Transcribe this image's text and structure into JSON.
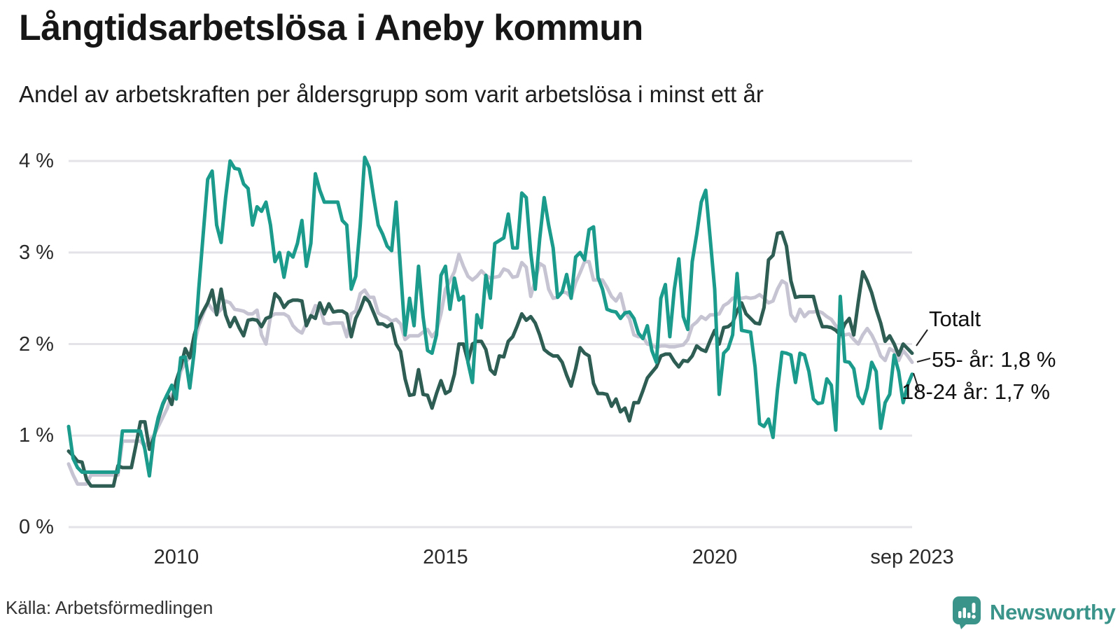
{
  "title": "Långtidsarbetslösa i Aneby kommun",
  "subtitle": "Andel av arbetskraften per åldersgrupp som varit arbetslösa i minst ett år",
  "source": "Källa: Arbetsförmedlingen",
  "branding": {
    "name": "Newsworthy",
    "color": "#3A948A"
  },
  "annotations": {
    "totalt": "Totalt",
    "age55": "55- år: 1,8 %",
    "age1824": "18-24 år: 1,7 %"
  },
  "chart_data": {
    "type": "line",
    "title": "Långtidsarbetslösa i Aneby kommun",
    "subtitle": "Andel av arbetskraften per åldersgrupp som varit arbetslösa i minst ett år",
    "unit": "percent",
    "frequency": "monthly",
    "x_start": "2008-01",
    "x_end": "2023-09",
    "grid": true,
    "legend_position": "end-of-line-labels",
    "ylim": [
      0,
      4.3
    ],
    "y_ticks": [
      {
        "label": "0 %",
        "value": 0
      },
      {
        "label": "1 %",
        "value": 1
      },
      {
        "label": "2 %",
        "value": 2
      },
      {
        "label": "3 %",
        "value": 3
      },
      {
        "label": "4 %",
        "value": 4
      }
    ],
    "x_ticks": [
      {
        "label": "2010",
        "month_index": 24
      },
      {
        "label": "2015",
        "month_index": 84
      },
      {
        "label": "2020",
        "month_index": 144
      },
      {
        "label": "sep 2023",
        "month_index": 188
      }
    ],
    "series": [
      {
        "name": "55- år",
        "color": "#C6C4D2",
        "end_value_label": "1,8 %",
        "values": [
          0.69,
          0.57,
          0.47,
          0.47,
          0.47,
          0.57,
          0.57,
          0.57,
          0.57,
          0.57,
          0.57,
          0.57,
          0.94,
          0.94,
          0.94,
          0.94,
          0.94,
          0.88,
          0.95,
          1.0,
          1.1,
          1.2,
          1.3,
          1.45,
          1.5,
          1.7,
          1.8,
          1.85,
          2.0,
          2.2,
          2.33,
          2.45,
          2.38,
          2.33,
          2.38,
          2.47,
          2.45,
          2.38,
          2.37,
          2.36,
          2.33,
          2.33,
          2.37,
          2.1,
          2.0,
          2.3,
          2.33,
          2.33,
          2.33,
          2.3,
          2.2,
          2.15,
          2.12,
          2.23,
          2.3,
          2.42,
          2.4,
          2.23,
          2.22,
          2.23,
          2.23,
          2.23,
          2.08,
          2.33,
          2.36,
          2.55,
          2.59,
          2.51,
          2.51,
          2.34,
          2.31,
          2.29,
          2.25,
          2.27,
          2.22,
          2.05,
          2.09,
          2.09,
          2.09,
          2.13,
          2.16,
          2.08,
          2.14,
          2.33,
          2.6,
          2.69,
          2.79,
          2.98,
          2.85,
          2.74,
          2.7,
          2.74,
          2.8,
          2.75,
          2.72,
          2.73,
          2.74,
          2.82,
          2.8,
          2.73,
          2.74,
          2.89,
          2.84,
          2.52,
          2.7,
          2.88,
          2.85,
          2.6,
          2.5,
          2.51,
          2.57,
          2.56,
          2.51,
          2.67,
          2.78,
          2.9,
          2.9,
          2.7,
          2.7,
          2.7,
          2.62,
          2.52,
          2.47,
          2.55,
          2.35,
          2.28,
          2.1,
          2.08,
          2.08,
          2.0,
          1.99,
          1.96,
          1.98,
          1.98,
          1.97,
          1.97,
          1.98,
          1.99,
          2.05,
          2.2,
          2.24,
          2.3,
          2.27,
          2.32,
          2.32,
          2.33,
          2.42,
          2.45,
          2.5,
          2.51,
          2.5,
          2.51,
          2.5,
          2.51,
          2.54,
          2.5,
          2.45,
          2.47,
          2.6,
          2.69,
          2.66,
          2.32,
          2.25,
          2.38,
          2.3,
          2.35,
          2.35,
          2.36,
          2.34,
          2.3,
          2.27,
          2.2,
          2.08,
          2.1,
          2.11,
          2.05,
          2.0,
          2.1,
          2.17,
          2.1,
          2.0,
          1.87,
          1.82,
          1.95,
          1.92,
          1.82,
          1.93,
          1.87,
          1.8
        ]
      },
      {
        "name": "Totalt",
        "color": "#2D5D53",
        "end_value_label": "",
        "values": [
          0.83,
          0.78,
          0.72,
          0.71,
          0.52,
          0.45,
          0.45,
          0.45,
          0.45,
          0.45,
          0.45,
          0.67,
          0.65,
          0.65,
          0.65,
          0.89,
          1.15,
          1.15,
          0.85,
          0.98,
          1.18,
          1.34,
          1.45,
          1.34,
          1.6,
          1.75,
          1.95,
          1.85,
          2.1,
          2.26,
          2.36,
          2.45,
          2.59,
          2.32,
          2.6,
          2.32,
          2.19,
          2.29,
          2.18,
          2.09,
          2.26,
          2.27,
          2.26,
          2.19,
          2.28,
          2.3,
          2.55,
          2.5,
          2.4,
          2.46,
          2.48,
          2.48,
          2.47,
          2.2,
          2.31,
          2.28,
          2.45,
          2.33,
          2.44,
          2.35,
          2.36,
          2.36,
          2.33,
          2.08,
          2.28,
          2.38,
          2.51,
          2.46,
          2.34,
          2.22,
          2.22,
          2.19,
          2.22,
          2.0,
          1.92,
          1.62,
          1.44,
          1.45,
          1.72,
          1.45,
          1.44,
          1.3,
          1.46,
          1.6,
          1.46,
          1.49,
          1.67,
          2.0,
          2.0,
          1.81,
          2.0,
          2.03,
          2.03,
          1.94,
          1.72,
          1.67,
          1.87,
          1.86,
          2.03,
          2.08,
          2.2,
          2.33,
          2.26,
          2.3,
          2.23,
          2.1,
          1.94,
          1.9,
          1.87,
          1.87,
          1.8,
          1.66,
          1.54,
          1.73,
          1.96,
          1.9,
          1.87,
          1.57,
          1.46,
          1.46,
          1.45,
          1.32,
          1.4,
          1.26,
          1.3,
          1.16,
          1.36,
          1.36,
          1.49,
          1.63,
          1.69,
          1.75,
          1.87,
          1.89,
          1.89,
          1.81,
          1.75,
          1.82,
          1.81,
          1.87,
          1.98,
          1.94,
          1.92,
          2.04,
          2.15,
          2.0,
          2.18,
          2.19,
          2.23,
          2.36,
          2.45,
          2.33,
          2.28,
          2.23,
          2.22,
          2.4,
          2.92,
          2.97,
          3.21,
          3.22,
          3.07,
          2.69,
          2.51,
          2.52,
          2.52,
          2.52,
          2.52,
          2.33,
          2.19,
          2.19,
          2.18,
          2.15,
          2.1,
          2.22,
          2.28,
          2.1,
          2.46,
          2.79,
          2.69,
          2.56,
          2.38,
          2.23,
          2.03,
          2.09,
          2.0,
          1.88,
          2.0,
          1.95,
          1.9
        ]
      },
      {
        "name": "18-24 år",
        "color": "#1A9B8B",
        "end_value_label": "1,7 %",
        "values": [
          1.1,
          0.75,
          0.65,
          0.6,
          0.6,
          0.6,
          0.6,
          0.6,
          0.6,
          0.6,
          0.6,
          0.6,
          1.05,
          1.05,
          1.05,
          1.05,
          1.05,
          0.85,
          0.56,
          0.98,
          1.2,
          1.35,
          1.45,
          1.55,
          1.4,
          1.85,
          1.86,
          1.52,
          1.92,
          2.6,
          3.2,
          3.8,
          3.89,
          3.3,
          3.11,
          3.6,
          4.0,
          3.92,
          3.91,
          3.75,
          3.7,
          3.3,
          3.5,
          3.45,
          3.55,
          3.3,
          2.9,
          3.0,
          2.73,
          3.0,
          2.95,
          3.1,
          3.35,
          2.85,
          3.1,
          3.86,
          3.68,
          3.55,
          3.55,
          3.55,
          3.55,
          3.35,
          3.3,
          2.6,
          2.74,
          3.3,
          4.04,
          3.93,
          3.6,
          3.3,
          3.2,
          3.07,
          3.02,
          3.55,
          2.8,
          2.1,
          2.5,
          2.2,
          2.85,
          2.3,
          1.93,
          1.9,
          2.1,
          2.75,
          2.85,
          2.38,
          2.72,
          2.48,
          2.52,
          1.8,
          1.58,
          2.32,
          2.18,
          2.75,
          2.5,
          3.1,
          3.13,
          3.16,
          3.42,
          3.05,
          3.05,
          3.65,
          3.6,
          3.0,
          2.6,
          3.15,
          3.6,
          3.3,
          3.05,
          2.51,
          2.57,
          2.76,
          2.5,
          2.95,
          3.0,
          2.92,
          3.25,
          3.28,
          2.73,
          2.6,
          2.38,
          2.36,
          2.35,
          2.28,
          2.34,
          2.35,
          2.28,
          2.12,
          2.06,
          2.2,
          1.93,
          1.8,
          2.5,
          2.65,
          2.08,
          2.6,
          2.93,
          2.3,
          2.16,
          2.9,
          3.2,
          3.55,
          3.68,
          3.15,
          2.6,
          1.45,
          1.9,
          1.95,
          2.1,
          2.77,
          2.15,
          2.14,
          2.13,
          1.75,
          1.13,
          1.1,
          1.18,
          0.98,
          1.5,
          1.91,
          1.9,
          1.88,
          1.58,
          1.9,
          1.88,
          1.7,
          1.4,
          1.35,
          1.36,
          1.62,
          1.55,
          1.06,
          2.52,
          1.81,
          1.8,
          1.73,
          1.43,
          1.35,
          1.52,
          1.8,
          1.7,
          1.08,
          1.36,
          1.45,
          1.88,
          1.7,
          1.36,
          1.55,
          1.67
        ]
      }
    ]
  }
}
